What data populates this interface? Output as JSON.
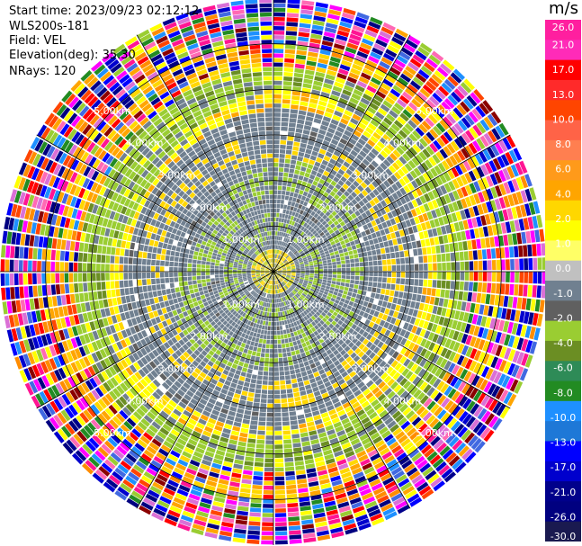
{
  "header": {
    "start_label": "Start time:",
    "start_time": "2023/09/23 02:12:12",
    "instrument": "WLS200s-181",
    "field_label": "Field:",
    "field": "VEL",
    "elevation_label": "Elevation(deg):",
    "elevation": "35.30",
    "nrays_label": "NRays:",
    "nrays": "120"
  },
  "colorbar": {
    "unit": "m/s",
    "tick_labels": [
      "26.0",
      "21.0",
      "17.0",
      "13.0",
      "10.0",
      "8.0",
      "6.0",
      "4.0",
      "2.0",
      "1.0",
      "0.0",
      "-1.0",
      "-2.0",
      "-4.0",
      "-6.0",
      "-8.0",
      "-10.0",
      "-13.0",
      "-17.0",
      "-21.0",
      "-26.0",
      "-30.0"
    ],
    "colors": [
      "#ff1f9f",
      "#ff2bb8",
      "#ff0000",
      "#ff2a2a",
      "#ff4500",
      "#ff6347",
      "#ff7f50",
      "#ff9a1a",
      "#ffa500",
      "#ffd700",
      "#ffff00",
      "#ffff66",
      "#c0c0c0",
      "#708090",
      "#606060",
      "#9acd32",
      "#6b8e23",
      "#2e8b57",
      "#228b22",
      "#1e90ff",
      "#1e78d7",
      "#0000ff",
      "#0000cd",
      "#00008b",
      "#000080",
      "#1a1a50"
    ]
  },
  "chart_data": {
    "type": "heatmap",
    "projection": "polar PPI",
    "field": "VEL",
    "units": "m/s",
    "n_rays": 120,
    "range_rings_km": [
      1.0,
      2.0,
      3.0,
      4.0,
      5.0
    ],
    "ring_labels": [
      "1.00km",
      "2.00km",
      "3.00km",
      "4.00km",
      "5.00km"
    ],
    "max_range_km": 6.0,
    "spokes_deg": [
      0,
      30,
      60,
      90,
      120,
      150,
      180,
      210,
      240,
      270,
      300,
      330
    ],
    "color_limits": [
      -30.0,
      26.0
    ],
    "description_of_pattern": {
      "near_field_km": [
        0.0,
        3.5
      ],
      "yellow_band_km": [
        2.3,
        4.5
      ],
      "green_band_km": [
        3.7,
        4.9
      ],
      "noise_beyond_km": 4.4
    }
  }
}
